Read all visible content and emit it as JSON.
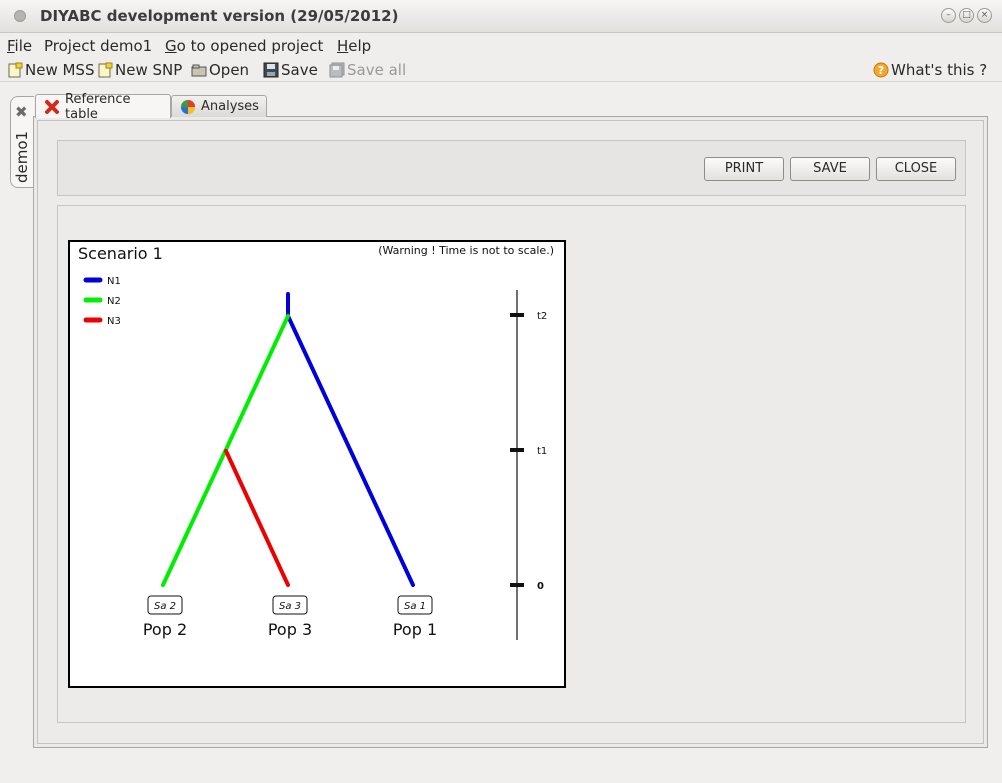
{
  "window": {
    "title": "DIYABC development version  (29/05/2012)"
  },
  "menu": {
    "items": [
      {
        "label": "File",
        "accel": "F",
        "rest": "ile"
      },
      {
        "label": "Project demo1",
        "accel": "",
        "rest": "Project demo1"
      },
      {
        "label": "Go to opened project",
        "accel": "G",
        "rest": "o to opened project"
      },
      {
        "label": "Help",
        "accel": "H",
        "rest": "elp"
      }
    ]
  },
  "toolbar": {
    "new_mss": "New MSS",
    "new_snp": "New SNP",
    "open": "Open",
    "save": "Save",
    "save_all": "Save all",
    "whats_this": "What's this ?"
  },
  "project_tab": {
    "label": "demo1"
  },
  "tabs": {
    "reference_table": "Reference table",
    "analyses": "Analyses"
  },
  "buttons": {
    "print": "PRINT",
    "save": "SAVE",
    "close": "CLOSE"
  },
  "scenario": {
    "title": "Scenario 1",
    "warning": "(Warning ! Time is not to scale.)",
    "legend": [
      {
        "label": "N1",
        "color": "#0000dd"
      },
      {
        "label": "N2",
        "color": "#00ee00"
      },
      {
        "label": "N3",
        "color": "#ee0000"
      }
    ],
    "time_labels": [
      "t2",
      "t1",
      "0"
    ],
    "populations": [
      {
        "name": "Pop 2",
        "sample": "Sa 2"
      },
      {
        "name": "Pop 3",
        "sample": "Sa 3"
      },
      {
        "name": "Pop 1",
        "sample": "Sa 1"
      }
    ]
  }
}
